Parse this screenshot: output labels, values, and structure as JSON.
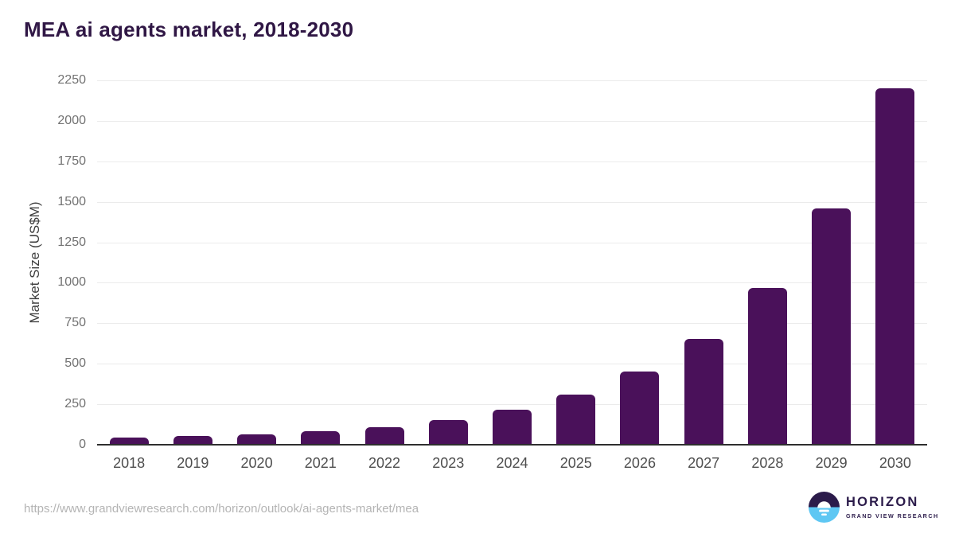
{
  "header": {
    "title": "MEA ai agents market, 2018-2030"
  },
  "chart_data": {
    "type": "bar",
    "title": "MEA ai agents market, 2018-2030",
    "xlabel": "",
    "ylabel": "Market Size (US$M)",
    "categories": [
      "2018",
      "2019",
      "2020",
      "2021",
      "2022",
      "2023",
      "2024",
      "2025",
      "2026",
      "2027",
      "2028",
      "2029",
      "2030"
    ],
    "values": [
      42,
      53,
      62,
      82,
      108,
      150,
      216,
      308,
      450,
      655,
      970,
      1460,
      2200
    ],
    "ylim": [
      0,
      2250
    ],
    "yticks": [
      0,
      250,
      500,
      750,
      1000,
      1250,
      1500,
      1750,
      2000,
      2250
    ],
    "grid": true,
    "legend": false,
    "bar_color": "#4a115a"
  },
  "colors": {
    "bar": "#4a115a",
    "title_text": "#301745",
    "gridline": "#ebebeb",
    "axis_line": "#2e2e2e",
    "y_tick_text": "#727272",
    "x_tick_text": "#4e4e4e",
    "axis_title_text": "#3f3f3f",
    "url_text": "#b4b4b4",
    "logo_purple": "#2b1b4a",
    "logo_blue": "#5ec7f3"
  },
  "footer": {
    "source_url": "https://www.grandviewresearch.com/horizon/outlook/ai-agents-market/mea",
    "logo": {
      "brand": "HORIZON",
      "subtitle": "GRAND VIEW RESEARCH"
    }
  }
}
